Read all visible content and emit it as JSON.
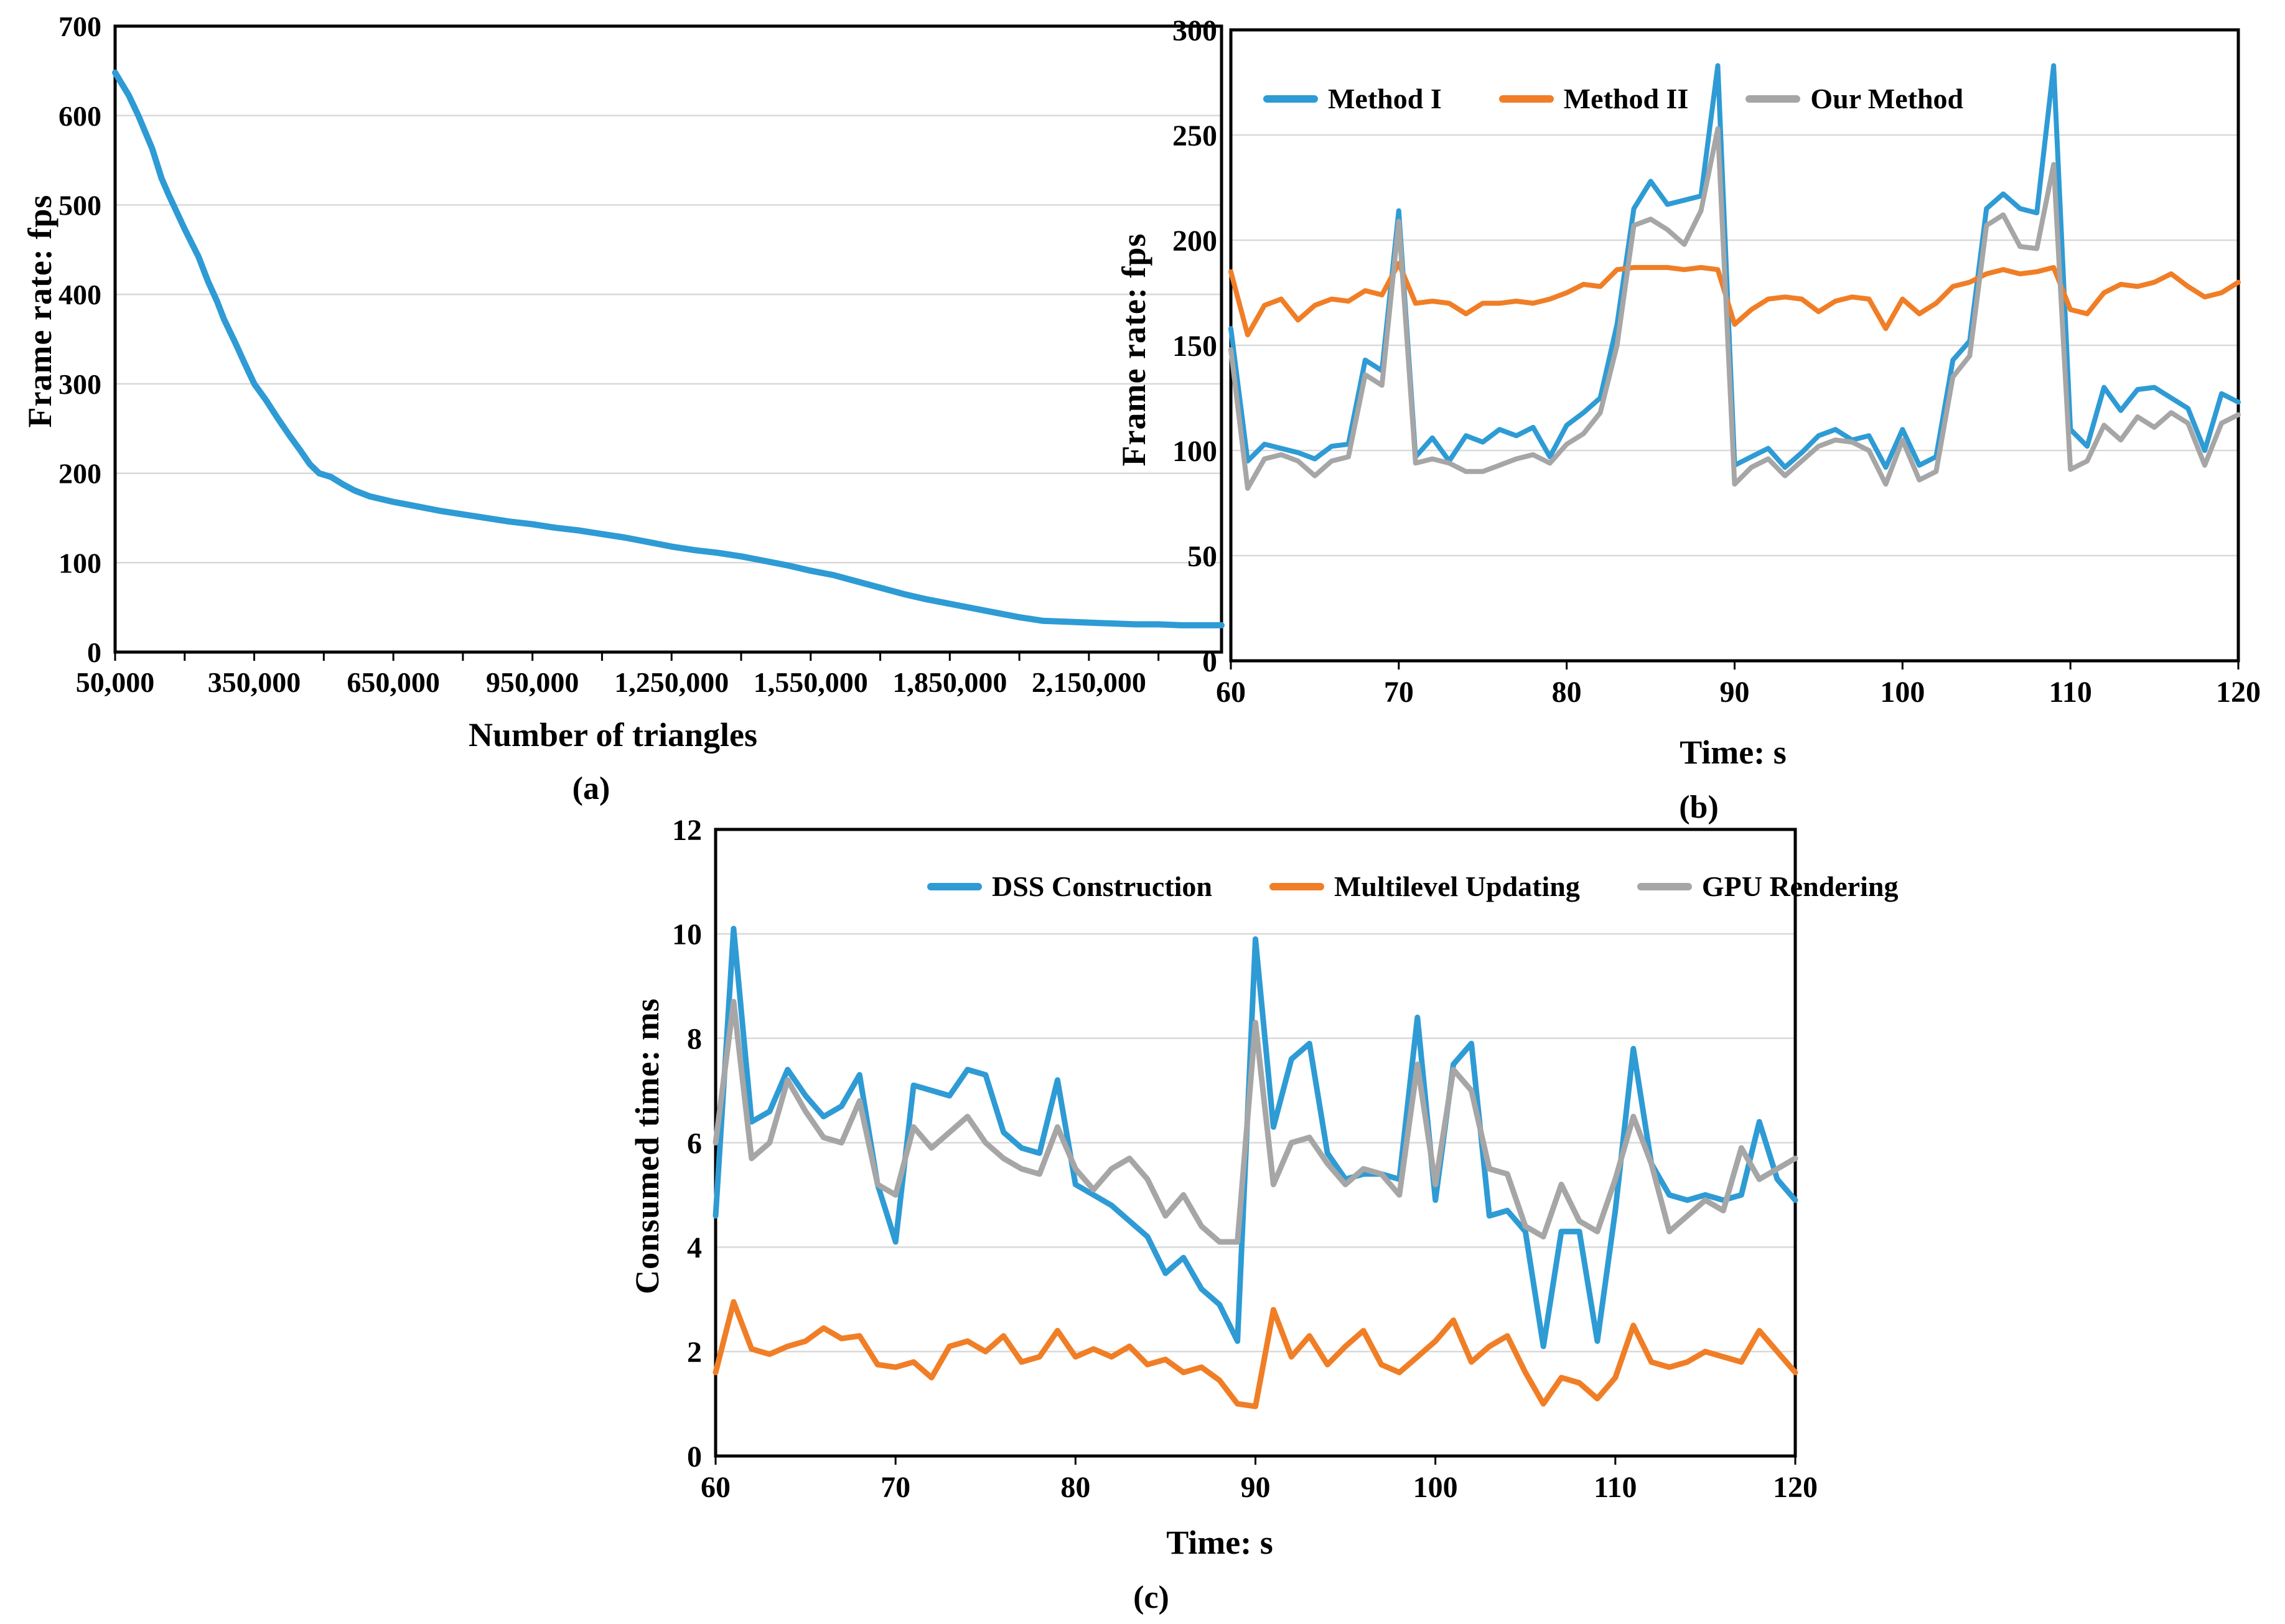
{
  "figure": {
    "background": "#FFFFFF",
    "grid_color": "#D9D9D9",
    "axis_color": "#000000",
    "accent_blue": "#2E9BD5",
    "accent_orange": "#F07E26",
    "accent_gray": "#A6A6A6"
  },
  "chart_data": [
    {
      "id": "a",
      "type": "line",
      "caption": "(a)",
      "xlabel": "Number of triangles",
      "ylabel": "Frame rate: fps",
      "xlim": [
        50000,
        2436000
      ],
      "ylim": [
        0,
        700
      ],
      "grid": "horizontal",
      "legend_position": "none",
      "xticks": [
        {
          "v": 50000,
          "label": "50,000"
        },
        {
          "v": 200000,
          "label": ""
        },
        {
          "v": 350000,
          "label": "350,000"
        },
        {
          "v": 500000,
          "label": ""
        },
        {
          "v": 650000,
          "label": "650,000"
        },
        {
          "v": 800000,
          "label": ""
        },
        {
          "v": 950000,
          "label": "950,000"
        },
        {
          "v": 1100000,
          "label": ""
        },
        {
          "v": 1250000,
          "label": "1,250,000"
        },
        {
          "v": 1400000,
          "label": ""
        },
        {
          "v": 1550000,
          "label": "1,550,000"
        },
        {
          "v": 1700000,
          "label": ""
        },
        {
          "v": 1850000,
          "label": "1,850,000"
        },
        {
          "v": 2000000,
          "label": ""
        },
        {
          "v": 2150000,
          "label": "2,150,000"
        },
        {
          "v": 2300000,
          "label": ""
        }
      ],
      "yticks": [
        {
          "v": 0,
          "label": "0"
        },
        {
          "v": 100,
          "label": "100"
        },
        {
          "v": 200,
          "label": "200"
        },
        {
          "v": 300,
          "label": "300"
        },
        {
          "v": 400,
          "label": "400"
        },
        {
          "v": 500,
          "label": "500"
        },
        {
          "v": 600,
          "label": "600"
        },
        {
          "v": 700,
          "label": "700"
        }
      ],
      "series": [
        {
          "name": "Frame rate",
          "color": "#2E9BD5",
          "points": [
            [
              50000,
              648
            ],
            [
              80000,
              622
            ],
            [
              100000,
              600
            ],
            [
              130000,
              563
            ],
            [
              150000,
              530
            ],
            [
              165000,
              512
            ],
            [
              200000,
              473
            ],
            [
              230000,
              442
            ],
            [
              250000,
              415
            ],
            [
              270000,
              392
            ],
            [
              285000,
              372
            ],
            [
              310000,
              345
            ],
            [
              330000,
              322
            ],
            [
              350000,
              300
            ],
            [
              375000,
              282
            ],
            [
              400000,
              262
            ],
            [
              425000,
              243
            ],
            [
              450000,
              225
            ],
            [
              470000,
              210
            ],
            [
              490000,
              200
            ],
            [
              515000,
              196
            ],
            [
              540000,
              188
            ],
            [
              565000,
              181
            ],
            [
              600000,
              174
            ],
            [
              650000,
              168
            ],
            [
              700000,
              163
            ],
            [
              750000,
              158
            ],
            [
              800000,
              154
            ],
            [
              850000,
              150
            ],
            [
              900000,
              146
            ],
            [
              950000,
              143
            ],
            [
              1000000,
              139
            ],
            [
              1050000,
              136
            ],
            [
              1100000,
              132
            ],
            [
              1150000,
              128
            ],
            [
              1200000,
              123
            ],
            [
              1250000,
              118
            ],
            [
              1300000,
              114
            ],
            [
              1350000,
              111
            ],
            [
              1400000,
              107
            ],
            [
              1450000,
              102
            ],
            [
              1500000,
              97
            ],
            [
              1550000,
              91
            ],
            [
              1600000,
              86
            ],
            [
              1650000,
              79
            ],
            [
              1700000,
              72
            ],
            [
              1750000,
              65
            ],
            [
              1800000,
              59
            ],
            [
              1850000,
              54
            ],
            [
              1900000,
              49
            ],
            [
              1950000,
              44
            ],
            [
              2000000,
              39
            ],
            [
              2050000,
              35
            ],
            [
              2100000,
              34
            ],
            [
              2150000,
              33
            ],
            [
              2200000,
              32
            ],
            [
              2250000,
              31
            ],
            [
              2300000,
              31
            ],
            [
              2350000,
              30
            ],
            [
              2400000,
              30
            ],
            [
              2436000,
              30
            ]
          ]
        }
      ]
    },
    {
      "id": "b",
      "type": "line",
      "caption": "(b)",
      "xlabel": "Time: s",
      "ylabel": "Frame rate: fps",
      "xlim": [
        60,
        120
      ],
      "ylim": [
        0,
        300
      ],
      "grid": "horizontal",
      "legend_position": "top-left-inside",
      "x_start": 60,
      "x_step": 1,
      "xticks": [
        {
          "v": 60,
          "label": "60"
        },
        {
          "v": 70,
          "label": "70"
        },
        {
          "v": 80,
          "label": "80"
        },
        {
          "v": 90,
          "label": "90"
        },
        {
          "v": 100,
          "label": "100"
        },
        {
          "v": 110,
          "label": "110"
        },
        {
          "v": 120,
          "label": "120"
        }
      ],
      "yticks": [
        {
          "v": 0,
          "label": "0"
        },
        {
          "v": 50,
          "label": "50"
        },
        {
          "v": 100,
          "label": "100"
        },
        {
          "v": 150,
          "label": "150"
        },
        {
          "v": 200,
          "label": "200"
        },
        {
          "v": 250,
          "label": "250"
        },
        {
          "v": 300,
          "label": "300"
        }
      ],
      "series": [
        {
          "name": "Method I",
          "color": "#2E9BD5",
          "values": [
            158,
            95,
            103,
            101,
            99,
            96,
            102,
            103,
            143,
            138,
            214,
            97,
            106,
            95,
            107,
            104,
            110,
            107,
            111,
            97,
            112,
            118,
            125,
            160,
            215,
            228,
            217,
            219,
            221,
            283,
            93,
            97,
            101,
            92,
            99,
            107,
            110,
            105,
            107,
            92,
            110,
            93,
            97,
            143,
            152,
            215,
            222,
            215,
            213,
            283,
            110,
            102,
            130,
            119,
            129,
            130,
            125,
            120,
            100,
            127,
            123
          ]
        },
        {
          "name": "Method II",
          "color": "#F07E26",
          "values": [
            185,
            155,
            169,
            172,
            162,
            169,
            172,
            171,
            176,
            174,
            189,
            170,
            171,
            170,
            165,
            170,
            170,
            171,
            170,
            172,
            175,
            179,
            178,
            186,
            187,
            187,
            187,
            186,
            187,
            186,
            160,
            167,
            172,
            173,
            172,
            166,
            171,
            173,
            172,
            158,
            172,
            165,
            170,
            178,
            180,
            184,
            186,
            184,
            185,
            187,
            167,
            165,
            175,
            179,
            178,
            180,
            184,
            178,
            173,
            175,
            180
          ]
        },
        {
          "name": "Our Method",
          "color": "#A6A6A6",
          "values": [
            148,
            82,
            96,
            98,
            95,
            88,
            95,
            97,
            136,
            131,
            209,
            94,
            96,
            94,
            90,
            90,
            93,
            96,
            98,
            94,
            103,
            108,
            118,
            150,
            207,
            210,
            205,
            198,
            214,
            253,
            84,
            92,
            96,
            88,
            95,
            102,
            105,
            104,
            100,
            84,
            105,
            86,
            90,
            135,
            145,
            207,
            212,
            197,
            196,
            236,
            91,
            95,
            112,
            105,
            116,
            111,
            118,
            113,
            93,
            113,
            117
          ]
        }
      ]
    },
    {
      "id": "c",
      "type": "line",
      "caption": "(c)",
      "xlabel": "Time: s",
      "ylabel": "Consumed time: ms",
      "xlim": [
        60,
        120
      ],
      "ylim": [
        0,
        12
      ],
      "grid": "horizontal",
      "legend_position": "top-center-inside",
      "x_start": 60,
      "x_step": 1,
      "xticks": [
        {
          "v": 60,
          "label": "60"
        },
        {
          "v": 70,
          "label": "70"
        },
        {
          "v": 80,
          "label": "80"
        },
        {
          "v": 90,
          "label": "90"
        },
        {
          "v": 100,
          "label": "100"
        },
        {
          "v": 110,
          "label": "110"
        },
        {
          "v": 120,
          "label": "120"
        }
      ],
      "yticks": [
        {
          "v": 0,
          "label": "0"
        },
        {
          "v": 2,
          "label": "2"
        },
        {
          "v": 4,
          "label": "4"
        },
        {
          "v": 6,
          "label": "6"
        },
        {
          "v": 8,
          "label": "8"
        },
        {
          "v": 10,
          "label": "10"
        },
        {
          "v": 12,
          "label": "12"
        }
      ],
      "series": [
        {
          "name": "DSS Construction",
          "color": "#2E9BD5",
          "values": [
            4.6,
            10.1,
            6.4,
            6.6,
            7.4,
            6.9,
            6.5,
            6.7,
            7.3,
            5.2,
            4.1,
            7.1,
            7.0,
            6.9,
            7.4,
            7.3,
            6.2,
            5.9,
            5.8,
            7.2,
            5.2,
            5.0,
            4.8,
            4.5,
            4.2,
            3.5,
            3.8,
            3.2,
            2.9,
            2.2,
            9.9,
            6.3,
            7.6,
            7.9,
            5.8,
            5.3,
            5.4,
            5.4,
            5.3,
            8.4,
            4.9,
            7.5,
            7.9,
            4.6,
            4.7,
            4.3,
            2.1,
            4.3,
            4.3,
            2.2,
            4.7,
            7.8,
            5.6,
            5.0,
            4.9,
            5.0,
            4.9,
            5.0,
            6.4,
            5.3,
            4.9
          ]
        },
        {
          "name": "Multilevel Updating",
          "color": "#F07E26",
          "values": [
            1.6,
            2.95,
            2.05,
            1.95,
            2.1,
            2.2,
            2.45,
            2.25,
            2.3,
            1.75,
            1.7,
            1.8,
            1.5,
            2.1,
            2.2,
            2.0,
            2.3,
            1.8,
            1.9,
            2.4,
            1.9,
            2.05,
            1.9,
            2.1,
            1.75,
            1.85,
            1.6,
            1.7,
            1.45,
            1.0,
            0.95,
            2.8,
            1.9,
            2.3,
            1.75,
            2.1,
            2.4,
            1.75,
            1.6,
            1.9,
            2.2,
            2.6,
            1.8,
            2.1,
            2.3,
            1.6,
            1.0,
            1.5,
            1.4,
            1.1,
            1.5,
            2.5,
            1.8,
            1.7,
            1.8,
            2.0,
            1.9,
            1.8,
            2.4,
            2.0,
            1.6
          ]
        },
        {
          "name": "GPU Rendering",
          "color": "#A6A6A6",
          "values": [
            6.0,
            8.7,
            5.7,
            6.0,
            7.2,
            6.6,
            6.1,
            6.0,
            6.8,
            5.2,
            5.0,
            6.3,
            5.9,
            6.2,
            6.5,
            6.0,
            5.7,
            5.5,
            5.4,
            6.3,
            5.5,
            5.1,
            5.5,
            5.7,
            5.3,
            4.6,
            5.0,
            4.4,
            4.1,
            4.1,
            8.3,
            5.2,
            6.0,
            6.1,
            5.6,
            5.2,
            5.5,
            5.4,
            5.0,
            7.5,
            5.2,
            7.4,
            7.0,
            5.5,
            5.4,
            4.4,
            4.2,
            5.2,
            4.5,
            4.3,
            5.3,
            6.5,
            5.6,
            4.3,
            4.6,
            4.9,
            4.7,
            5.9,
            5.3,
            5.5,
            5.7
          ]
        }
      ]
    }
  ]
}
